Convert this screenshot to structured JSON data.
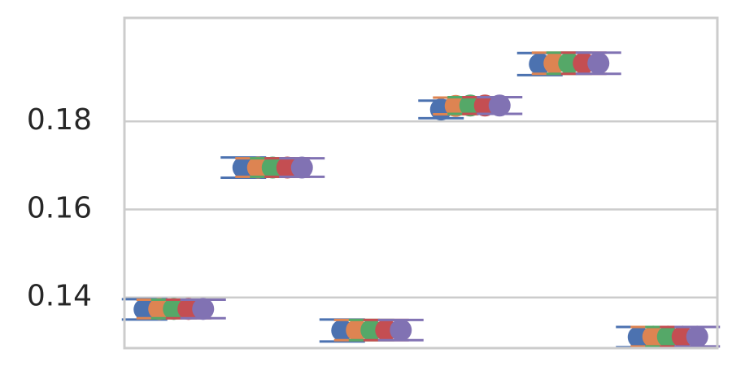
{
  "chart_data": {
    "type": "scatter",
    "title": "",
    "xlabel": "",
    "ylabel": "",
    "ylim": [
      0.1285,
      0.2035
    ],
    "yticks": [
      0.14,
      0.16,
      0.18
    ],
    "ytick_labels": [
      "0.14",
      "0.16",
      "0.18"
    ],
    "grid": "horizontal",
    "groups": 6,
    "series": [
      {
        "color": "#4c72b0",
        "values": [
          0.1373,
          0.1695,
          0.1325,
          0.1827,
          0.193,
          0.131
        ],
        "errors": [
          0.0023,
          0.0023,
          0.0025,
          0.002,
          0.0025,
          0.0023
        ]
      },
      {
        "color": "#dd8452",
        "values": [
          0.1374,
          0.1695,
          0.1326,
          0.1835,
          0.1932,
          0.1311
        ],
        "errors": [
          0.0021,
          0.0021,
          0.0023,
          0.0019,
          0.0024,
          0.0022
        ]
      },
      {
        "color": "#55a868",
        "values": [
          0.1374,
          0.1695,
          0.1326,
          0.1836,
          0.1932,
          0.1311
        ],
        "errors": [
          0.0021,
          0.0021,
          0.0023,
          0.0019,
          0.0024,
          0.0022
        ]
      },
      {
        "color": "#c44e52",
        "values": [
          0.1374,
          0.1695,
          0.1326,
          0.1836,
          0.1932,
          0.1311
        ],
        "errors": [
          0.0021,
          0.0021,
          0.0023,
          0.0019,
          0.0024,
          0.0022
        ]
      },
      {
        "color": "#8172b3",
        "values": [
          0.1374,
          0.1695,
          0.1326,
          0.1836,
          0.1932,
          0.1311
        ],
        "errors": [
          0.0021,
          0.0021,
          0.0023,
          0.0019,
          0.0024,
          0.0022
        ]
      }
    ]
  }
}
